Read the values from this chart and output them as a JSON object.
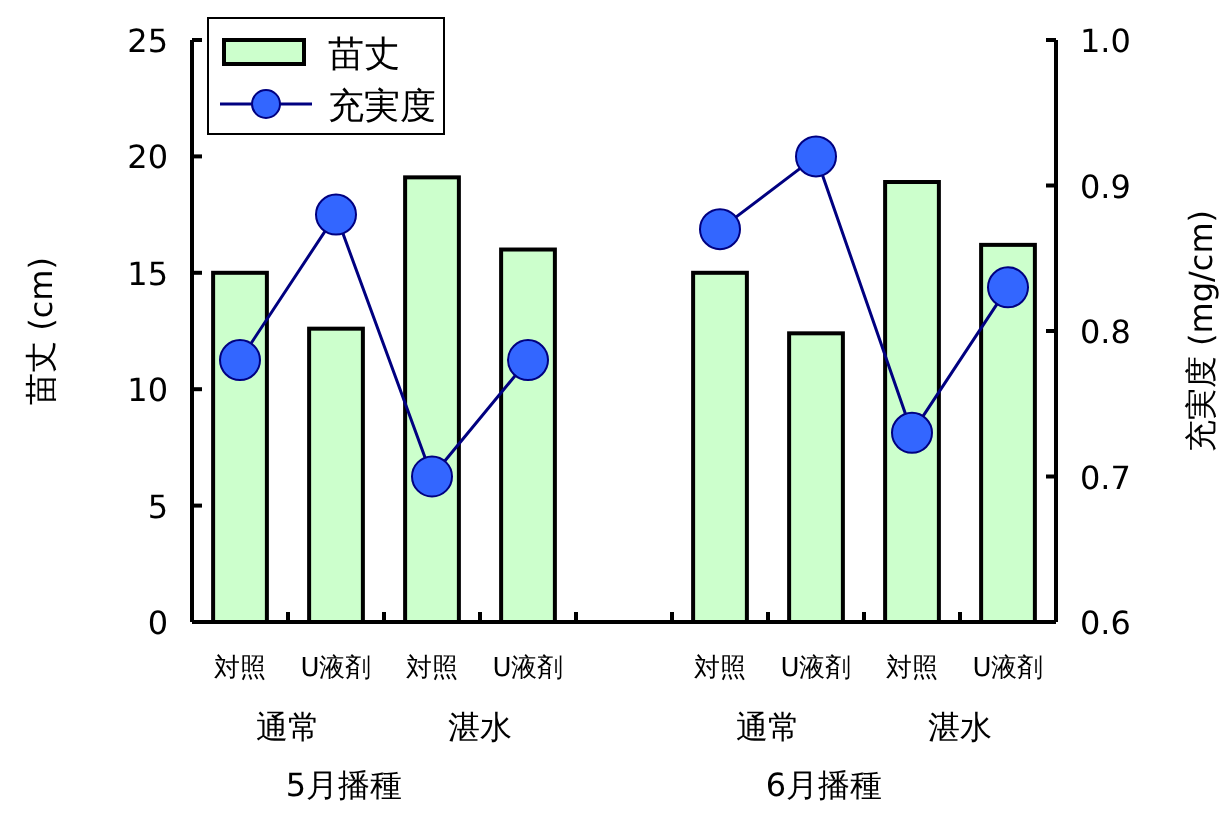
{
  "chart_data": {
    "type": "bar",
    "xlabel": null,
    "ylabel": "苗丈 (cm)",
    "y2label": "充実度 (mg/cm)",
    "categories": [
      "対照",
      "U液剤",
      "対照",
      "U液剤",
      null,
      "対照",
      "U液剤",
      "対照",
      "U液剤"
    ],
    "series": [
      {
        "name": "苗丈",
        "color": "#ccffcc",
        "values": [
          15.0,
          12.6,
          19.1,
          16.0,
          null,
          15.0,
          12.4,
          18.9,
          16.2
        ]
      },
      {
        "name": "充実度",
        "type": "line",
        "axis": "y2",
        "color": "#000080",
        "marker": "circle",
        "values": [
          0.78,
          0.88,
          0.7,
          0.78,
          null,
          0.87,
          0.92,
          0.73,
          0.83
        ]
      }
    ],
    "ylim": [
      0,
      25
    ],
    "yticks": [
      0,
      5,
      10,
      15,
      20,
      25
    ],
    "y2lim": [
      0.6,
      1.0
    ],
    "y2ticks": [
      0.6,
      0.7,
      0.8,
      0.9,
      {
        "value": 1.0,
        "label": "1.0"
      }
    ],
    "annotations": [
      "通常",
      "湛水",
      "通常",
      "湛水",
      "5月播種",
      "6月播種"
    ],
    "legend": "top left",
    "grid": false
  }
}
